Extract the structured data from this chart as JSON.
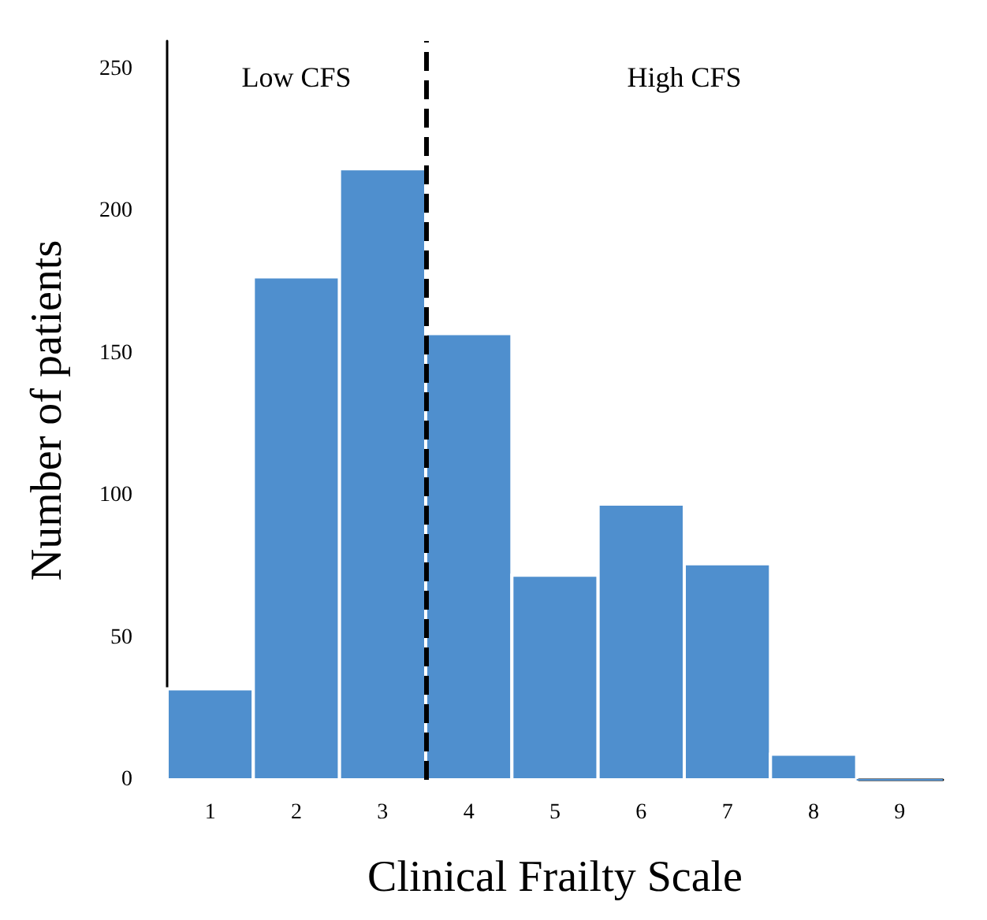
{
  "chart_data": {
    "type": "histogram",
    "xlabel": "Clinical Frailty Scale",
    "ylabel": "Number of patients",
    "bins": [
      0.5,
      1.5,
      2.5,
      3.5,
      4.5,
      5.5,
      6.5,
      7.5,
      8.5,
      9.5
    ],
    "values": [
      32,
      177,
      215,
      157,
      72,
      97,
      76,
      9,
      0
    ],
    "color": "#4f8fce",
    "xlim": [
      0.5,
      9.5
    ],
    "xticks": [
      1,
      2,
      3,
      4,
      5,
      6,
      7,
      8,
      9
    ],
    "ylim": [
      0,
      260
    ],
    "yticks": [
      0,
      50,
      100,
      150,
      200,
      250
    ],
    "ref_lines": [
      {
        "axis": "x",
        "value": 3.5,
        "color": "#000000",
        "line_style": "dashed"
      }
    ],
    "annotations": [
      "Low CFS",
      "High CFS"
    ],
    "grid": false
  }
}
